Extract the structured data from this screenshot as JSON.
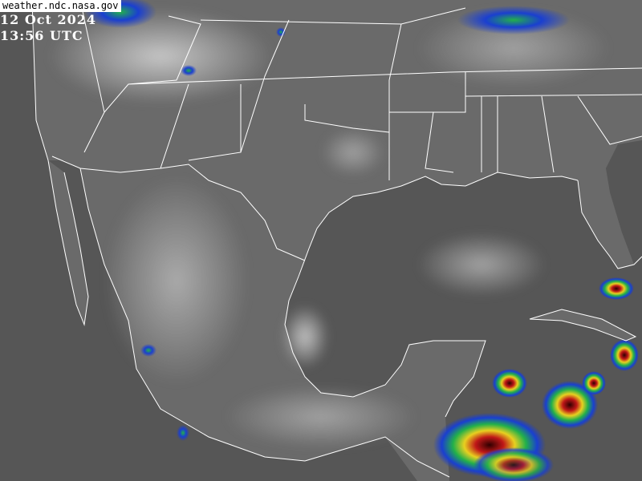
{
  "source": "weather.ndc.nasa.gov",
  "date": "12 Oct 2024",
  "time": "13:56 UTC",
  "colors": {
    "ocean": "#565656",
    "land": "#6c6c6c",
    "cloud_light": "#c8c8c8",
    "border": "#ffffff",
    "convection_cold": "#1a3fd0",
    "convection_mid": "#22b04a",
    "convection_warm": "#e8d020",
    "convection_hot": "#c01818"
  }
}
